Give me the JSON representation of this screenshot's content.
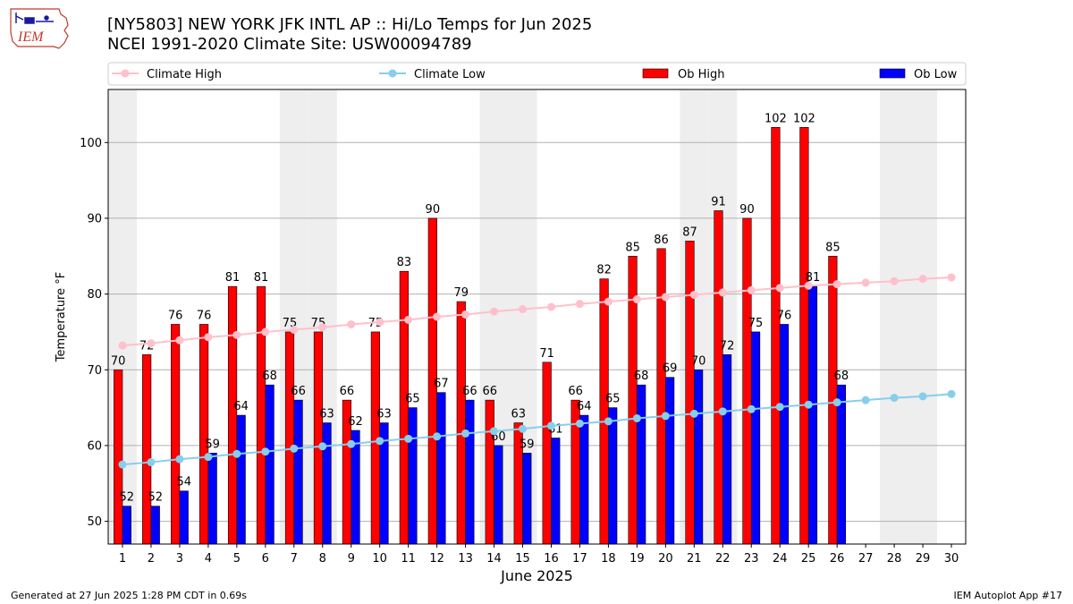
{
  "header": {
    "title_line1": "[NY5803] NEW YORK JFK INTL AP :: Hi/Lo Temps for Jun 2025",
    "title_line2": "NCEI 1991-2020 Climate Site: USW00094789",
    "logo_text": "IEM"
  },
  "footer": {
    "left": "Generated at 27 Jun 2025 1:28 PM CDT in 0.69s",
    "right": "IEM Autoplot App #17"
  },
  "colors": {
    "ob_high": "#ff0000",
    "ob_low": "#0000ff",
    "climate_high": "#ffc0cb",
    "climate_low": "#87ceeb",
    "weekend_band": "#eeeeee",
    "grid": "#b0b0b0"
  },
  "chart_data": {
    "type": "bar",
    "xlabel": "June 2025",
    "ylabel": "Temperature °F",
    "ylim": [
      47,
      107
    ],
    "yticks": [
      50,
      60,
      70,
      80,
      90,
      100
    ],
    "xlim": [
      0.5,
      30.5
    ],
    "grid": "horizontal",
    "legend_position": "top",
    "legend": [
      "Climate High",
      "Climate Low",
      "Ob High",
      "Ob Low"
    ],
    "weekend_days": [
      1,
      7,
      8,
      14,
      15,
      21,
      22,
      28,
      29
    ],
    "days": [
      1,
      2,
      3,
      4,
      5,
      6,
      7,
      8,
      9,
      10,
      11,
      12,
      13,
      14,
      15,
      16,
      17,
      18,
      19,
      20,
      21,
      22,
      23,
      24,
      25,
      26,
      27,
      28,
      29,
      30
    ],
    "series": [
      {
        "name": "Ob High",
        "kind": "bar",
        "values": [
          70,
          72,
          76,
          76,
          81,
          81,
          75,
          75,
          66,
          75,
          83,
          90,
          79,
          66,
          63,
          71,
          66,
          82,
          85,
          86,
          87,
          91,
          90,
          102,
          102,
          85
        ]
      },
      {
        "name": "Ob Low",
        "kind": "bar",
        "values": [
          52,
          52,
          54,
          59,
          64,
          68,
          66,
          63,
          62,
          63,
          65,
          67,
          66,
          60,
          59,
          61,
          64,
          65,
          68,
          69,
          70,
          72,
          75,
          76,
          81,
          68
        ]
      },
      {
        "name": "Climate High",
        "kind": "line",
        "values": [
          73.2,
          73.5,
          73.9,
          74.3,
          74.6,
          75.0,
          75.3,
          75.6,
          76.0,
          76.3,
          76.6,
          77.0,
          77.3,
          77.7,
          78.0,
          78.3,
          78.7,
          79.0,
          79.3,
          79.6,
          79.9,
          80.2,
          80.5,
          80.8,
          81.1,
          81.3,
          81.5,
          81.7,
          82.0,
          82.2
        ]
      },
      {
        "name": "Climate Low",
        "kind": "line",
        "values": [
          57.5,
          57.8,
          58.2,
          58.5,
          58.9,
          59.2,
          59.6,
          59.9,
          60.2,
          60.6,
          60.9,
          61.2,
          61.6,
          61.9,
          62.2,
          62.6,
          62.9,
          63.2,
          63.6,
          63.9,
          64.2,
          64.5,
          64.8,
          65.1,
          65.4,
          65.7,
          66.0,
          66.3,
          66.5,
          66.8
        ]
      }
    ]
  }
}
